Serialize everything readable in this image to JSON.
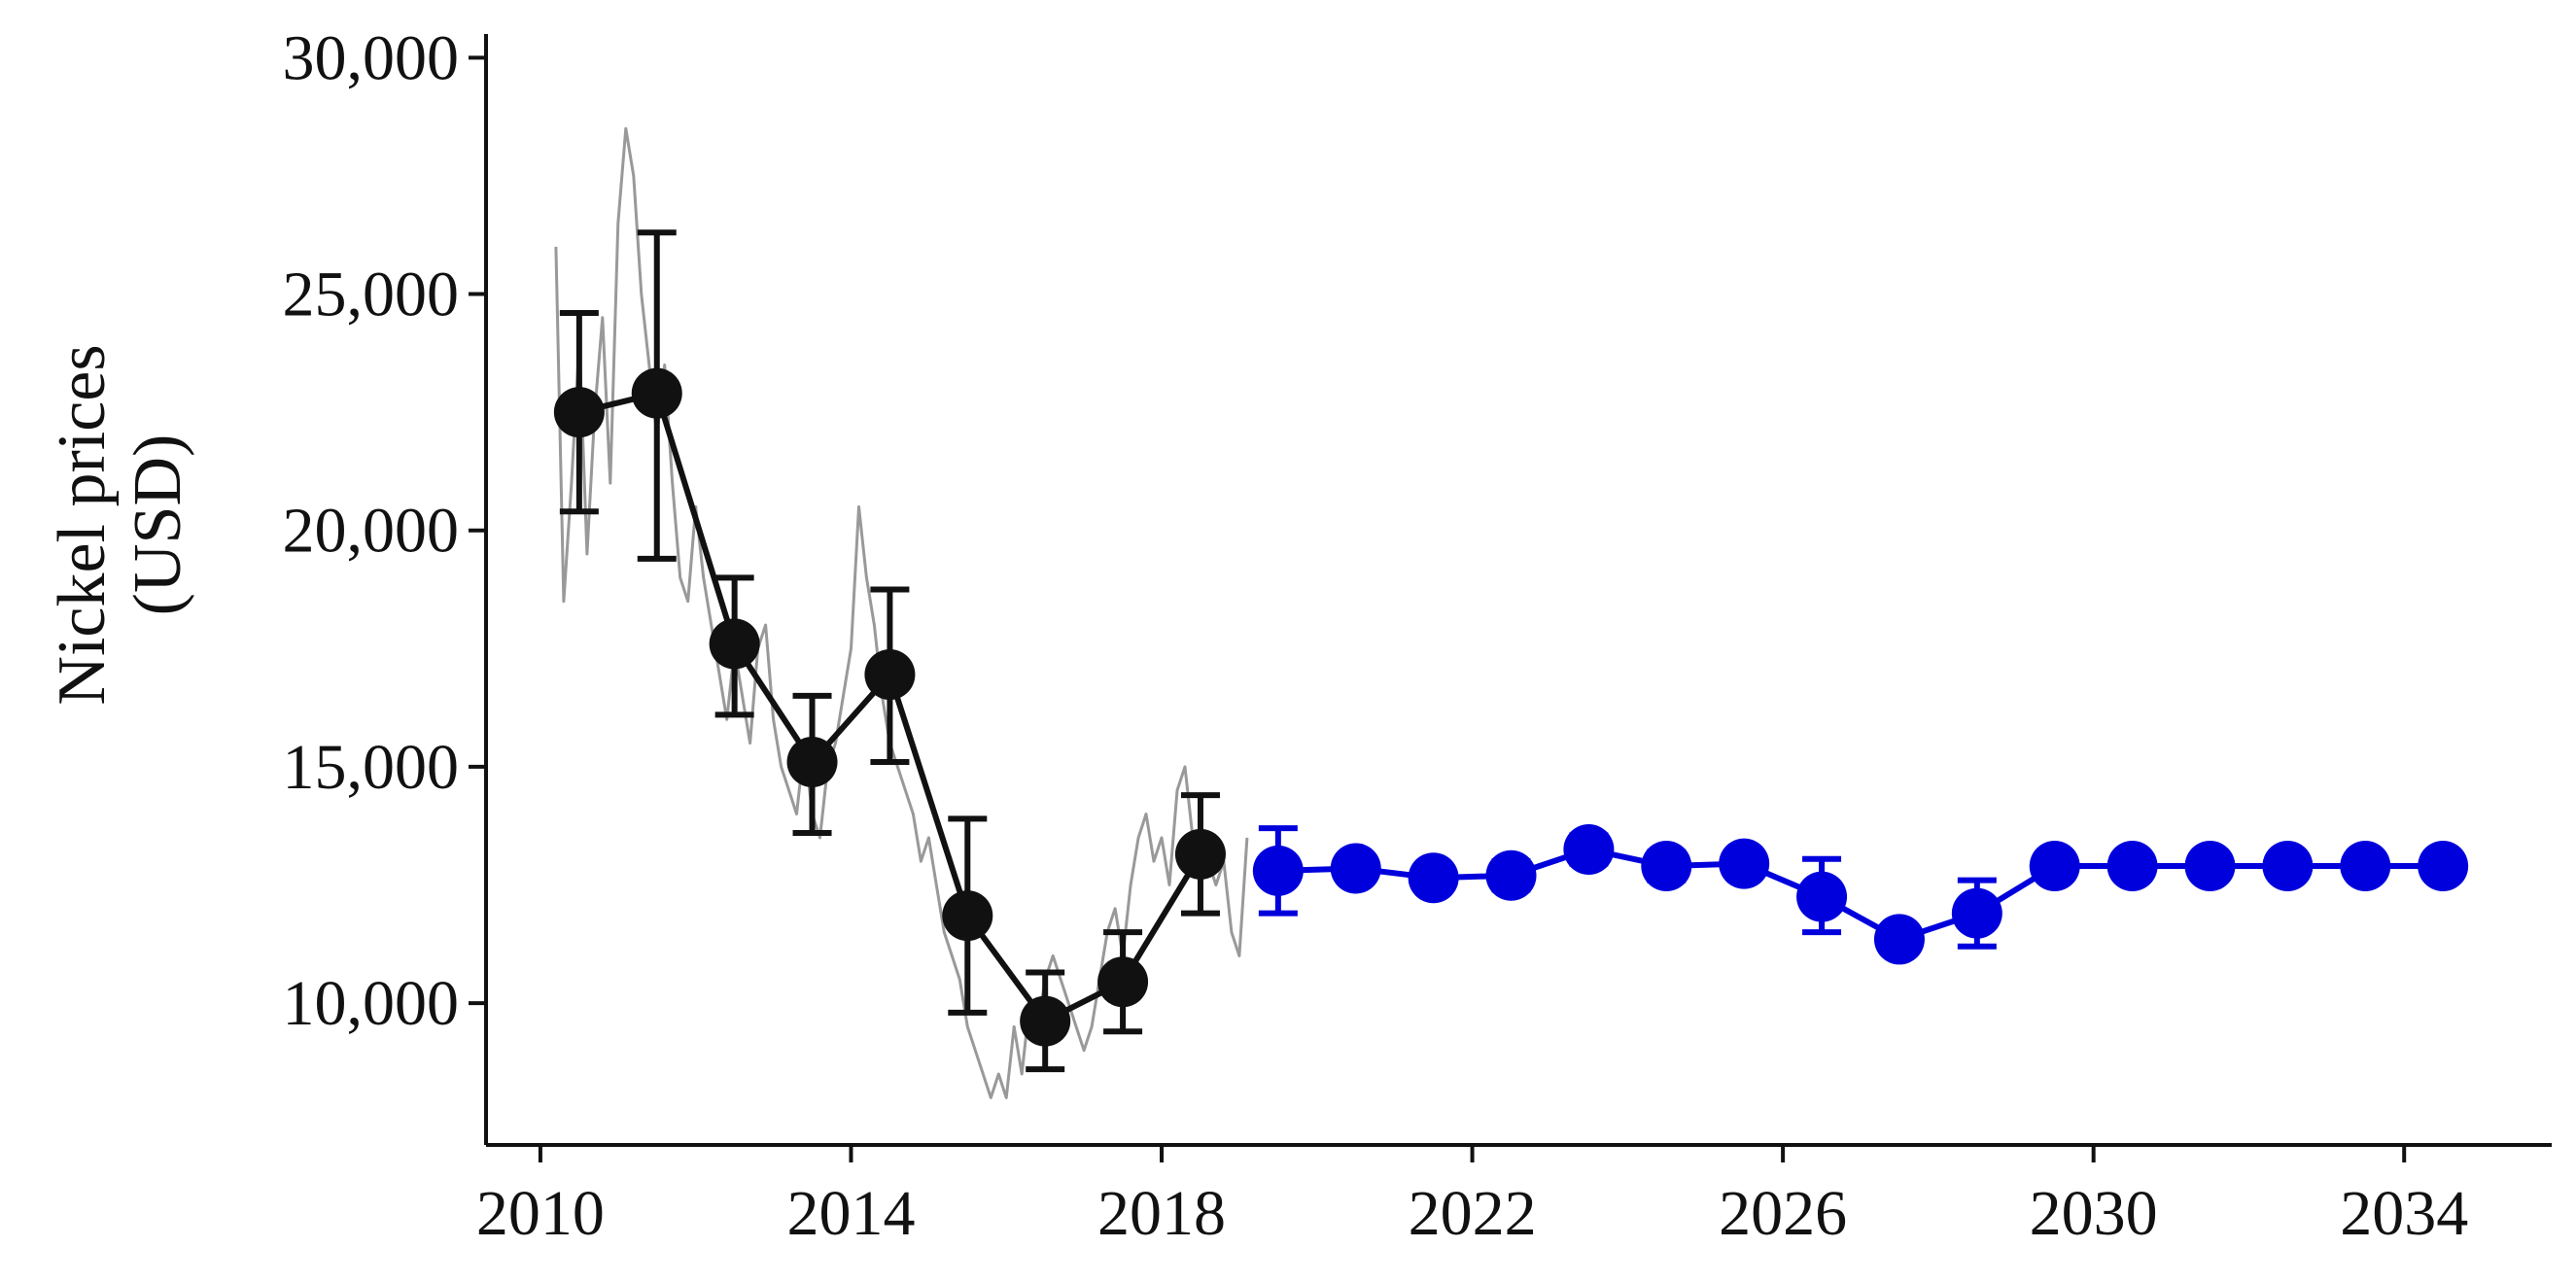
{
  "chart_data": {
    "type": "line",
    "title": "",
    "xlabel": "",
    "ylabel": [
      "Nickel prices",
      "(USD)"
    ],
    "xlim": [
      2009.3,
      2035.9
    ],
    "ylim": [
      7000,
      30500
    ],
    "x_ticks": [
      2010,
      2014,
      2018,
      2022,
      2026,
      2030,
      2034
    ],
    "x_tick_labels": [
      "2010",
      "2014",
      "2018",
      "2022",
      "2026",
      "2030",
      "2034"
    ],
    "y_ticks": [
      10000,
      15000,
      20000,
      25000,
      30000
    ],
    "y_tick_labels": [
      "10,000",
      "15,000",
      "20,000",
      "25,000",
      "30,000"
    ],
    "grid": false,
    "legend": "none",
    "series": [
      {
        "kind": "raw-daily",
        "color": "#999999",
        "x": [
          2010.2,
          2010.3,
          2010.4,
          2010.5,
          2010.6,
          2010.7,
          2010.8,
          2010.9,
          2011.0,
          2011.1,
          2011.2,
          2011.3,
          2011.4,
          2011.5,
          2011.6,
          2011.7,
          2011.8,
          2011.9,
          2012.0,
          2012.1,
          2012.2,
          2012.3,
          2012.4,
          2012.5,
          2012.6,
          2012.7,
          2012.8,
          2012.9,
          2013.0,
          2013.1,
          2013.2,
          2013.3,
          2013.4,
          2013.5,
          2013.6,
          2013.7,
          2013.8,
          2013.9,
          2014.0,
          2014.1,
          2014.2,
          2014.3,
          2014.4,
          2014.5,
          2014.6,
          2014.7,
          2014.8,
          2014.9,
          2015.0,
          2015.1,
          2015.2,
          2015.3,
          2015.4,
          2015.5,
          2015.6,
          2015.7,
          2015.8,
          2015.9,
          2016.0,
          2016.1,
          2016.2,
          2016.3,
          2016.4,
          2016.5,
          2016.6,
          2016.7,
          2016.8,
          2016.9,
          2017.0,
          2017.1,
          2017.2,
          2017.3,
          2017.4,
          2017.5,
          2017.6,
          2017.7,
          2017.8,
          2017.9,
          2018.0,
          2018.1,
          2018.2,
          2018.3,
          2018.4,
          2018.5,
          2018.6,
          2018.7,
          2018.8,
          2018.9,
          2019.0,
          2019.1
        ],
        "values": [
          26000,
          18500,
          21000,
          24000,
          19500,
          22500,
          24500,
          21000,
          26500,
          28500,
          27500,
          25000,
          23500,
          22000,
          23500,
          21000,
          19000,
          18500,
          20500,
          19000,
          18000,
          17000,
          16000,
          17500,
          16500,
          15500,
          17500,
          18000,
          16000,
          15000,
          14500,
          14000,
          15500,
          14000,
          13500,
          15000,
          15500,
          16500,
          17500,
          20500,
          19000,
          18000,
          16500,
          15500,
          15000,
          14500,
          14000,
          13000,
          13500,
          12500,
          11500,
          11000,
          10500,
          9500,
          9000,
          8500,
          8000,
          8500,
          8000,
          9500,
          8500,
          10000,
          9500,
          10500,
          11000,
          10500,
          10000,
          9500,
          9000,
          9500,
          10500,
          11500,
          12000,
          11000,
          12500,
          13500,
          14000,
          13000,
          13500,
          12500,
          14500,
          15000,
          13500,
          12500,
          13000,
          12500,
          13000,
          11500,
          11000,
          13500
        ]
      },
      {
        "kind": "historical-annual",
        "color": "#111111",
        "x": [
          2010.5,
          2011.5,
          2012.5,
          2013.5,
          2014.5,
          2015.5,
          2016.5,
          2017.5,
          2018.5
        ],
        "values": [
          22500,
          22900,
          17600,
          15100,
          16950,
          11850,
          9620,
          10450,
          13150
        ],
        "err_low": [
          20400,
          19400,
          16100,
          13600,
          15100,
          9800,
          8600,
          9400,
          11900
        ],
        "err_high": [
          24600,
          26300,
          19000,
          16500,
          18750,
          13900,
          10650,
          11500,
          14400
        ]
      },
      {
        "kind": "forecast",
        "color": "#0000dd",
        "x": [
          2019.5,
          2020.5,
          2021.5,
          2022.5,
          2023.5,
          2024.5,
          2025.5,
          2026.5,
          2027.5,
          2028.5,
          2029.5,
          2030.5,
          2031.5,
          2032.5,
          2033.5,
          2034.5
        ],
        "values": [
          12800,
          12850,
          12650,
          12700,
          13250,
          12900,
          12950,
          12250,
          11350,
          11900,
          12900,
          12900,
          12900,
          12900,
          12900,
          12900
        ],
        "err_low": [
          11900,
          12700,
          12550,
          12400,
          12950,
          12600,
          12800,
          11500,
          11250,
          11200,
          12900,
          12900,
          12900,
          12900,
          12900,
          12900
        ],
        "err_high": [
          13700,
          13000,
          12800,
          13000,
          13550,
          13200,
          13150,
          13050,
          11450,
          12600,
          12900,
          12900,
          12900,
          12900,
          12900,
          12900
        ]
      }
    ]
  }
}
